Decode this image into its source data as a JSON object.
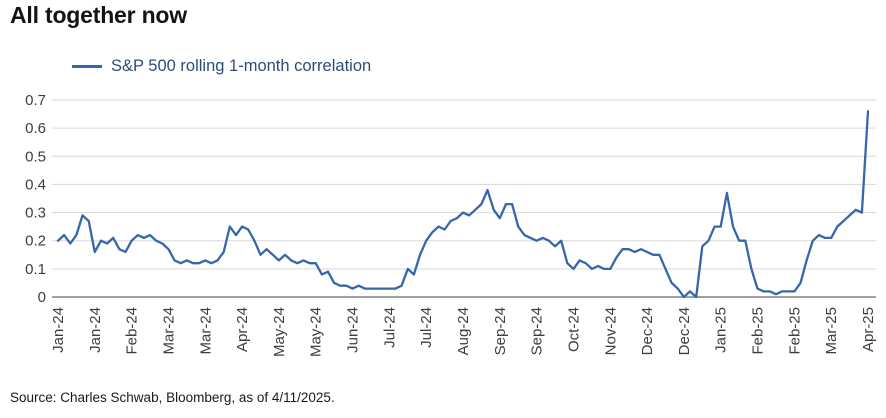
{
  "title": "All together now",
  "legend": {
    "label": "S&P 500 rolling 1-month correlation"
  },
  "source": "Source: Charles Schwab, Bloomberg, as of 4/11/2025.",
  "colors": {
    "line": "#3766ad",
    "legend_text": "#2d4d79",
    "grid": "#d9d9d9",
    "axis": "#a0a0a0",
    "tick_text": "#3d3d3d",
    "title_text": "#141414",
    "source_text": "#1a1a1a"
  },
  "chart_data": {
    "type": "line",
    "title": "All together now",
    "xlabel": "",
    "ylabel": "",
    "ylim": [
      0,
      0.7
    ],
    "grid": "horizontal",
    "legend_position": "top-left",
    "y_ticks": [
      0,
      0.1,
      0.2,
      0.3,
      0.4,
      0.5,
      0.6,
      0.7
    ],
    "y_tick_labels": [
      "0",
      "0.1",
      "0.2",
      "0.3",
      "0.4",
      "0.5",
      "0.6",
      "0.7"
    ],
    "x_ticks_every": 6,
    "x_tick_labels": [
      "Jan-24",
      "Jan-24",
      "Feb-24",
      "Mar-24",
      "Mar-24",
      "Apr-24",
      "May-24",
      "May-24",
      "Jun-24",
      "Jul-24",
      "Jul-24",
      "Aug-24",
      "Sep-24",
      "Sep-24",
      "Oct-24",
      "Nov-24",
      "Dec-24",
      "Dec-24",
      "Jan-25",
      "Feb-25",
      "Feb-25",
      "Mar-25",
      "Apr-25"
    ],
    "series": [
      {
        "name": "S&P 500 rolling 1-month correlation",
        "values": [
          0.2,
          0.22,
          0.19,
          0.22,
          0.29,
          0.27,
          0.16,
          0.2,
          0.19,
          0.21,
          0.17,
          0.16,
          0.2,
          0.22,
          0.21,
          0.22,
          0.2,
          0.19,
          0.17,
          0.13,
          0.12,
          0.13,
          0.12,
          0.12,
          0.13,
          0.12,
          0.13,
          0.16,
          0.25,
          0.22,
          0.25,
          0.24,
          0.2,
          0.15,
          0.17,
          0.15,
          0.13,
          0.15,
          0.13,
          0.12,
          0.13,
          0.12,
          0.12,
          0.08,
          0.09,
          0.05,
          0.04,
          0.04,
          0.03,
          0.04,
          0.03,
          0.03,
          0.03,
          0.03,
          0.03,
          0.03,
          0.04,
          0.1,
          0.08,
          0.15,
          0.2,
          0.23,
          0.25,
          0.24,
          0.27,
          0.28,
          0.3,
          0.29,
          0.31,
          0.33,
          0.38,
          0.31,
          0.28,
          0.33,
          0.33,
          0.25,
          0.22,
          0.21,
          0.2,
          0.21,
          0.2,
          0.18,
          0.2,
          0.12,
          0.1,
          0.13,
          0.12,
          0.1,
          0.11,
          0.1,
          0.1,
          0.14,
          0.17,
          0.17,
          0.16,
          0.17,
          0.16,
          0.15,
          0.15,
          0.1,
          0.05,
          0.03,
          0.0,
          0.02,
          0.0,
          0.18,
          0.2,
          0.25,
          0.25,
          0.37,
          0.25,
          0.2,
          0.2,
          0.1,
          0.03,
          0.02,
          0.02,
          0.01,
          0.02,
          0.02,
          0.02,
          0.05,
          0.13,
          0.2,
          0.22,
          0.21,
          0.21,
          0.25,
          0.27,
          0.29,
          0.31,
          0.3,
          0.66
        ]
      }
    ]
  }
}
